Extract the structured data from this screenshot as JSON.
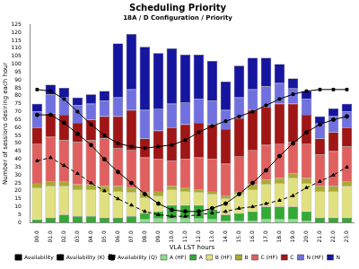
{
  "chart_data": {
    "type": "bar",
    "title": "Scheduling Priority",
    "subtitle": "18A / D Configuration / Priority",
    "x_label": "VLA LST hours",
    "y_label": "Number of sessions desiring each hour",
    "categories": [
      "00.0",
      "01.0",
      "02.0",
      "03.0",
      "04.0",
      "05.0",
      "06.0",
      "07.0",
      "08.0",
      "09.0",
      "10.0",
      "11.0",
      "12.0",
      "13.0",
      "14.0",
      "15.0",
      "16.0",
      "17.0",
      "18.0",
      "19.0",
      "20.0",
      "21.0",
      "22.0",
      "23.0"
    ],
    "stacked": true,
    "grid": false,
    "legend": "bottom",
    "ylim": [
      0,
      125
    ],
    "yticks": [
      0,
      5,
      10,
      15,
      20,
      25,
      30,
      35,
      40,
      45,
      50,
      55,
      60,
      65,
      70,
      75,
      80,
      85,
      90,
      95,
      100,
      105,
      110,
      115,
      120,
      125
    ],
    "series": [
      {
        "name": "A (HF)",
        "color": "#88e088",
        "values": [
          0,
          0,
          0,
          0,
          0,
          0,
          0,
          0,
          2,
          3,
          3,
          3,
          3,
          2,
          1,
          1,
          1,
          2,
          2,
          2,
          1,
          0,
          0,
          0
        ]
      },
      {
        "name": "A",
        "color": "#33aa33",
        "values": [
          2,
          3,
          5,
          4,
          4,
          3,
          3,
          4,
          4,
          4,
          8,
          8,
          8,
          6,
          4,
          5,
          6,
          8,
          8,
          8,
          6,
          3,
          3,
          3
        ]
      },
      {
        "name": "B (HF)",
        "color": "#e0e080",
        "values": [
          20,
          20,
          18,
          17,
          17,
          17,
          17,
          15,
          10,
          10,
          10,
          9,
          8,
          10,
          10,
          12,
          14,
          14,
          15,
          18,
          18,
          17,
          17,
          20
        ]
      },
      {
        "name": "B",
        "color": "#aaaa33",
        "values": [
          3,
          3,
          3,
          3,
          3,
          3,
          3,
          3,
          3,
          3,
          2,
          2,
          2,
          2,
          2,
          2,
          3,
          3,
          3,
          3,
          3,
          3,
          3,
          3
        ]
      },
      {
        "name": "C (HF)",
        "color": "#e06060",
        "values": [
          25,
          28,
          26,
          27,
          28,
          30,
          24,
          24,
          22,
          20,
          16,
          18,
          20,
          20,
          20,
          22,
          22,
          22,
          22,
          20,
          22,
          20,
          22,
          22
        ]
      },
      {
        "name": "C",
        "color": "#a01515",
        "values": [
          10,
          15,
          16,
          12,
          13,
          14,
          20,
          25,
          12,
          18,
          21,
          22,
          22,
          22,
          22,
          24,
          25,
          24,
          25,
          24,
          18,
          10,
          12,
          12
        ]
      },
      {
        "name": "N (HF)",
        "color": "#7070e0",
        "values": [
          10,
          12,
          11,
          11,
          10,
          10,
          12,
          13,
          18,
          14,
          15,
          14,
          15,
          15,
          12,
          13,
          13,
          13,
          13,
          10,
          10,
          10,
          10,
          10
        ]
      },
      {
        "name": "N",
        "color": "#1515a0",
        "values": [
          5,
          6,
          6,
          5,
          6,
          6,
          34,
          35,
          40,
          35,
          35,
          30,
          28,
          25,
          18,
          20,
          20,
          18,
          12,
          6,
          5,
          4,
          5,
          5
        ]
      },
      {
        "name": "Availability",
        "type": "line",
        "color": "#000000",
        "marker": "square",
        "line_style": "solid",
        "values": [
          84,
          83,
          78,
          70,
          62,
          55,
          50,
          48,
          47,
          48,
          49,
          52,
          57,
          61,
          64,
          67,
          70,
          74,
          78,
          81,
          83,
          84,
          84,
          84
        ]
      },
      {
        "name": "Availability (K)",
        "type": "line",
        "color": "#000000",
        "marker": "circle",
        "line_style": "solid",
        "values": [
          68,
          68,
          63,
          56,
          49,
          40,
          32,
          25,
          18,
          12,
          8,
          7,
          7,
          9,
          12,
          18,
          25,
          33,
          42,
          50,
          57,
          62,
          65,
          67
        ]
      },
      {
        "name": "Availability (Q)",
        "type": "line",
        "color": "#000000",
        "marker": "triangle",
        "line_style": "dashed",
        "values": [
          39,
          41,
          36,
          31,
          25,
          20,
          15,
          11,
          7,
          5,
          4,
          4,
          5,
          6,
          7,
          9,
          10,
          12,
          14,
          17,
          22,
          26,
          30,
          35
        ]
      }
    ]
  }
}
